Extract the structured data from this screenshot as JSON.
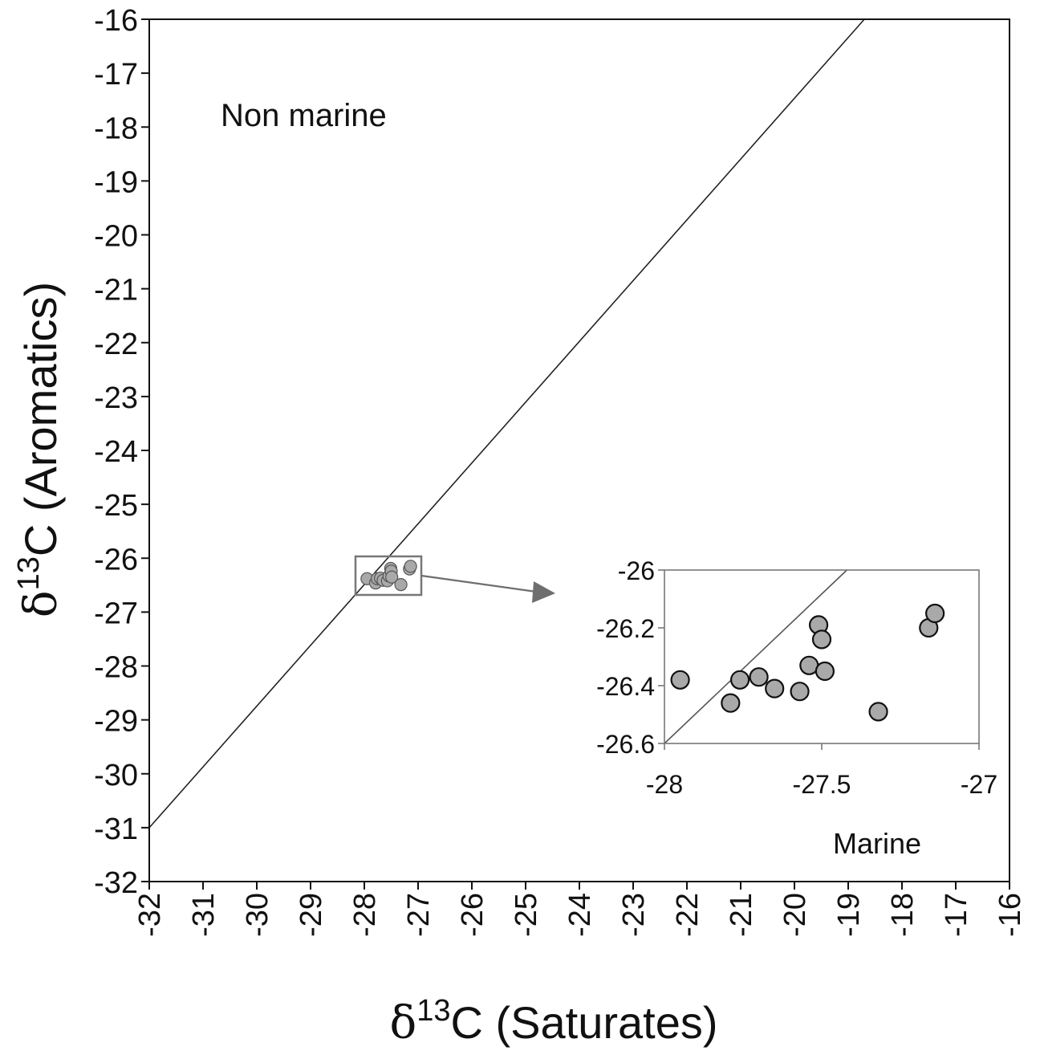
{
  "chart_data": [
    {
      "type": "scatter",
      "id": "main",
      "xlabel_symbol": "δ",
      "xlabel_sup": "13",
      "xlabel_rest": "C (Saturates)",
      "ylabel_symbol": "δ",
      "ylabel_sup": "13",
      "ylabel_rest": "C (Aromatics)",
      "xlim": [
        -32,
        -16
      ],
      "ylim": [
        -32,
        -16
      ],
      "x_ticks": [
        "-32",
        "-31",
        "-30",
        "-29",
        "-28",
        "-27",
        "-26",
        "-25",
        "-24",
        "-23",
        "-22",
        "-21",
        "-20",
        "-19",
        "-18",
        "-17",
        "-16"
      ],
      "y_ticks": [
        "-16",
        "-17",
        "-18",
        "-19",
        "-20",
        "-21",
        "-22",
        "-23",
        "-24",
        "-25",
        "-26",
        "-27",
        "-28",
        "-29",
        "-30",
        "-31",
        "-32"
      ],
      "divider_line": {
        "x": [
          -32,
          -18.7
        ],
        "y": [
          -31.0,
          -16.0
        ]
      },
      "region_labels": {
        "upper_left": "Non marine"
      },
      "grid": false,
      "points": [
        {
          "x": -27.95,
          "y": -26.38
        },
        {
          "x": -27.79,
          "y": -26.46
        },
        {
          "x": -27.76,
          "y": -26.38
        },
        {
          "x": -27.7,
          "y": -26.37
        },
        {
          "x": -27.65,
          "y": -26.41
        },
        {
          "x": -27.57,
          "y": -26.42
        },
        {
          "x": -27.54,
          "y": -26.33
        },
        {
          "x": -27.51,
          "y": -26.19
        },
        {
          "x": -27.5,
          "y": -26.24
        },
        {
          "x": -27.49,
          "y": -26.35
        },
        {
          "x": -27.32,
          "y": -26.49
        },
        {
          "x": -27.16,
          "y": -26.2
        },
        {
          "x": -27.14,
          "y": -26.15
        }
      ]
    },
    {
      "type": "scatter",
      "id": "inset",
      "xlim": [
        -28,
        -27
      ],
      "ylim": [
        -26.6,
        -26
      ],
      "x_ticks": [
        "-28",
        "-27.5",
        "-27"
      ],
      "y_ticks": [
        "-26",
        "-26.2",
        "-26.4",
        "-26.6"
      ],
      "divider_line": {
        "x": [
          -28,
          -27.42
        ],
        "y": [
          -26.6,
          -26.0
        ]
      },
      "region_labels": {
        "lower_right": "Marine"
      },
      "grid": false,
      "points": [
        {
          "x": -27.95,
          "y": -26.38
        },
        {
          "x": -27.79,
          "y": -26.46
        },
        {
          "x": -27.76,
          "y": -26.38
        },
        {
          "x": -27.7,
          "y": -26.37
        },
        {
          "x": -27.65,
          "y": -26.41
        },
        {
          "x": -27.57,
          "y": -26.42
        },
        {
          "x": -27.54,
          "y": -26.33
        },
        {
          "x": -27.51,
          "y": -26.19
        },
        {
          "x": -27.5,
          "y": -26.24
        },
        {
          "x": -27.49,
          "y": -26.35
        },
        {
          "x": -27.32,
          "y": -26.49
        },
        {
          "x": -27.16,
          "y": -26.2
        },
        {
          "x": -27.14,
          "y": -26.15
        }
      ]
    }
  ],
  "colors": {
    "axis": "#111111",
    "divider": "#222222",
    "point_fill": "#a9a9a9",
    "point_stroke": "#111111",
    "inset_frame": "#777777",
    "arrow": "#6e6e6e"
  }
}
